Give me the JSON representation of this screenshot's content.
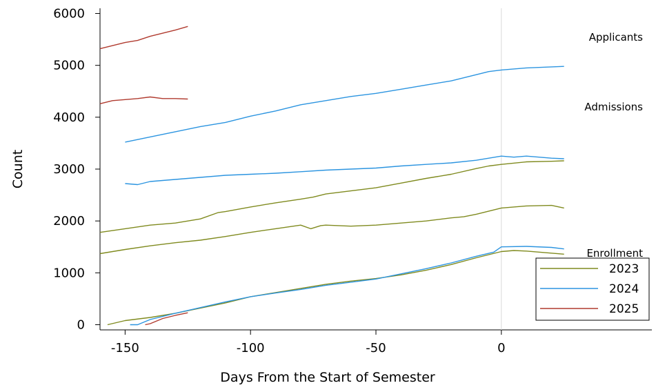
{
  "chart_data": {
    "type": "line",
    "title": "",
    "xlabel": "Days From the Start of Semester",
    "ylabel": "Count",
    "xlim": [
      -160,
      60
    ],
    "ylim": [
      -100,
      6100
    ],
    "xticks": [
      -150,
      -100,
      -50,
      0
    ],
    "yticks": [
      0,
      1000,
      2000,
      3000,
      4000,
      5000,
      6000
    ],
    "reference_line_x": 0,
    "annotations": [
      "Applicants",
      "Admissions",
      "Enrollment"
    ],
    "legend": {
      "placement": "bottom-right",
      "entries": [
        "2023",
        "2024",
        "2025"
      ]
    },
    "colors": {
      "2023": "#7f8a1e",
      "2024": "#2b94e0",
      "2025": "#b03a2e"
    },
    "series": [
      {
        "name": "2023",
        "metric": "Applicants",
        "x": [
          -160,
          -150,
          -140,
          -130,
          -120,
          -113,
          -110,
          -100,
          -90,
          -80,
          -75,
          -70,
          -60,
          -50,
          -40,
          -30,
          -20,
          -10,
          -5,
          0,
          10,
          20,
          25
        ],
        "y": [
          1780,
          1850,
          1920,
          1960,
          2040,
          2160,
          2180,
          2270,
          2350,
          2420,
          2460,
          2520,
          2580,
          2640,
          2730,
          2820,
          2900,
          3010,
          3060,
          3090,
          3140,
          3150,
          3160
        ]
      },
      {
        "name": "2023",
        "metric": "Admissions",
        "x": [
          -160,
          -150,
          -140,
          -130,
          -120,
          -110,
          -100,
          -90,
          -80,
          -76,
          -72,
          -70,
          -60,
          -50,
          -40,
          -30,
          -20,
          -15,
          -10,
          0,
          10,
          20,
          25
        ],
        "y": [
          1370,
          1450,
          1520,
          1580,
          1630,
          1700,
          1780,
          1850,
          1920,
          1850,
          1910,
          1920,
          1900,
          1920,
          1960,
          2000,
          2060,
          2080,
          2130,
          2250,
          2290,
          2300,
          2250
        ]
      },
      {
        "name": "2023",
        "metric": "Enrollment",
        "x": [
          -157,
          -150,
          -140,
          -130,
          -120,
          -110,
          -100,
          -90,
          -80,
          -70,
          -60,
          -50,
          -40,
          -30,
          -20,
          -10,
          0,
          5,
          10,
          20,
          25
        ],
        "y": [
          0,
          80,
          140,
          220,
          320,
          420,
          540,
          620,
          700,
          780,
          840,
          890,
          960,
          1050,
          1160,
          1290,
          1410,
          1430,
          1420,
          1380,
          1360
        ]
      },
      {
        "name": "2024",
        "metric": "Applicants",
        "x": [
          -150,
          -140,
          -130,
          -120,
          -110,
          -100,
          -90,
          -80,
          -70,
          -60,
          -50,
          -40,
          -30,
          -20,
          -10,
          -5,
          0,
          10,
          20,
          25
        ],
        "y": [
          3520,
          3620,
          3720,
          3820,
          3900,
          4020,
          4120,
          4240,
          4320,
          4400,
          4460,
          4540,
          4620,
          4700,
          4820,
          4880,
          4910,
          4950,
          4970,
          4980
        ]
      },
      {
        "name": "2024",
        "metric": "Admissions",
        "x": [
          -150,
          -145,
          -140,
          -130,
          -120,
          -110,
          -100,
          -90,
          -80,
          -70,
          -60,
          -50,
          -40,
          -30,
          -20,
          -10,
          0,
          5,
          10,
          20,
          25
        ],
        "y": [
          2720,
          2700,
          2760,
          2800,
          2840,
          2880,
          2900,
          2920,
          2950,
          2980,
          3000,
          3020,
          3060,
          3090,
          3120,
          3170,
          3250,
          3230,
          3250,
          3210,
          3200
        ]
      },
      {
        "name": "2024",
        "metric": "Enrollment",
        "x": [
          -148,
          -145,
          -140,
          -130,
          -120,
          -110,
          -100,
          -90,
          -80,
          -70,
          -60,
          -50,
          -40,
          -30,
          -20,
          -10,
          -3,
          0,
          10,
          20,
          25
        ],
        "y": [
          0,
          0,
          100,
          220,
          330,
          440,
          540,
          610,
          680,
          760,
          820,
          880,
          980,
          1080,
          1190,
          1320,
          1400,
          1500,
          1510,
          1490,
          1460
        ]
      },
      {
        "name": "2025",
        "metric": "Applicants",
        "x": [
          -160,
          -155,
          -150,
          -145,
          -140,
          -135,
          -130,
          -125
        ],
        "y": [
          5320,
          5380,
          5440,
          5480,
          5560,
          5620,
          5680,
          5750
        ]
      },
      {
        "name": "2025",
        "metric": "Admissions",
        "x": [
          -160,
          -155,
          -150,
          -145,
          -140,
          -135,
          -130,
          -125
        ],
        "y": [
          4260,
          4320,
          4340,
          4360,
          4390,
          4360,
          4360,
          4350
        ]
      },
      {
        "name": "2025",
        "metric": "Enrollment",
        "x": [
          -142,
          -140,
          -135,
          -130,
          -125
        ],
        "y": [
          0,
          20,
          120,
          180,
          230
        ]
      }
    ]
  }
}
